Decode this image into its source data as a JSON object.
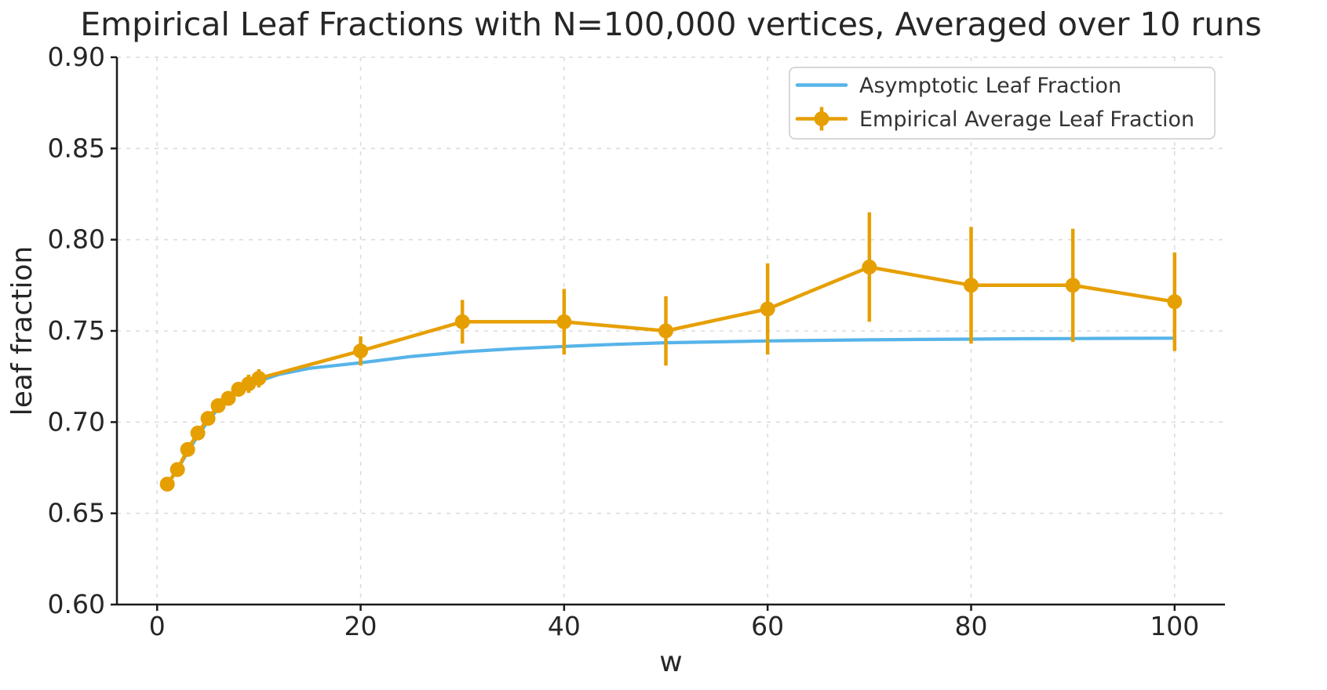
{
  "colors": {
    "asymptotic_line": "#56B4E9",
    "empirical_line": "#E69F00",
    "grid": "#DCDCDC",
    "spine": "#1A1A1A",
    "title_text": "#262626",
    "tick_text": "#262626",
    "label_text": "#262626",
    "legend_text": "#333333",
    "legend_border": "#CCCCCC",
    "background": "#FFFFFF"
  },
  "chart_data": {
    "type": "line",
    "title": "Empirical Leaf Fractions with N=100,000 vertices, Averaged over 10 runs",
    "xlabel": "w",
    "ylabel": "leaf fraction",
    "xlim": [
      -3.95,
      104.95
    ],
    "ylim": [
      0.6,
      0.9
    ],
    "xticks": [
      0,
      20,
      40,
      60,
      80,
      100
    ],
    "xtick_labels": [
      "0",
      "20",
      "40",
      "60",
      "80",
      "100"
    ],
    "yticks": [
      0.6,
      0.65,
      0.7,
      0.75,
      0.8,
      0.85,
      0.9
    ],
    "ytick_labels": [
      "0.60",
      "0.65",
      "0.70",
      "0.75",
      "0.80",
      "0.85",
      "0.90"
    ],
    "grid": true,
    "grid_style": "dashed",
    "legend_position": "upper right",
    "series": [
      {
        "name": "Asymptotic Leaf Fraction",
        "type": "line",
        "color": "#56B4E9",
        "marker": "none",
        "x": [
          1,
          2,
          3,
          4,
          5,
          6,
          7,
          8,
          9,
          10,
          12,
          15,
          20,
          25,
          30,
          35,
          40,
          45,
          50,
          55,
          60,
          65,
          70,
          75,
          80,
          85,
          90,
          95,
          100
        ],
        "y": [
          0.6655,
          0.674,
          0.6835,
          0.6925,
          0.7005,
          0.7075,
          0.7125,
          0.7165,
          0.7195,
          0.7225,
          0.7262,
          0.7295,
          0.7325,
          0.736,
          0.7385,
          0.7402,
          0.7415,
          0.7426,
          0.7435,
          0.744,
          0.7445,
          0.7448,
          0.7451,
          0.7453,
          0.7455,
          0.7457,
          0.7458,
          0.7459,
          0.746
        ]
      },
      {
        "name": "Empirical Average Leaf Fraction",
        "type": "errorbar-line",
        "color": "#E69F00",
        "marker": "circle",
        "x": [
          1,
          2,
          3,
          4,
          5,
          6,
          7,
          8,
          9,
          10,
          20,
          30,
          40,
          50,
          60,
          70,
          80,
          90,
          100
        ],
        "y": [
          0.666,
          0.674,
          0.685,
          0.694,
          0.702,
          0.709,
          0.713,
          0.718,
          0.721,
          0.724,
          0.739,
          0.755,
          0.755,
          0.75,
          0.762,
          0.785,
          0.775,
          0.775,
          0.766
        ],
        "yerr": [
          0.002,
          0.002,
          0.002,
          0.003,
          0.003,
          0.003,
          0.004,
          0.004,
          0.005,
          0.005,
          0.008,
          0.012,
          0.018,
          0.019,
          0.025,
          0.03,
          0.032,
          0.031,
          0.027
        ]
      }
    ]
  }
}
